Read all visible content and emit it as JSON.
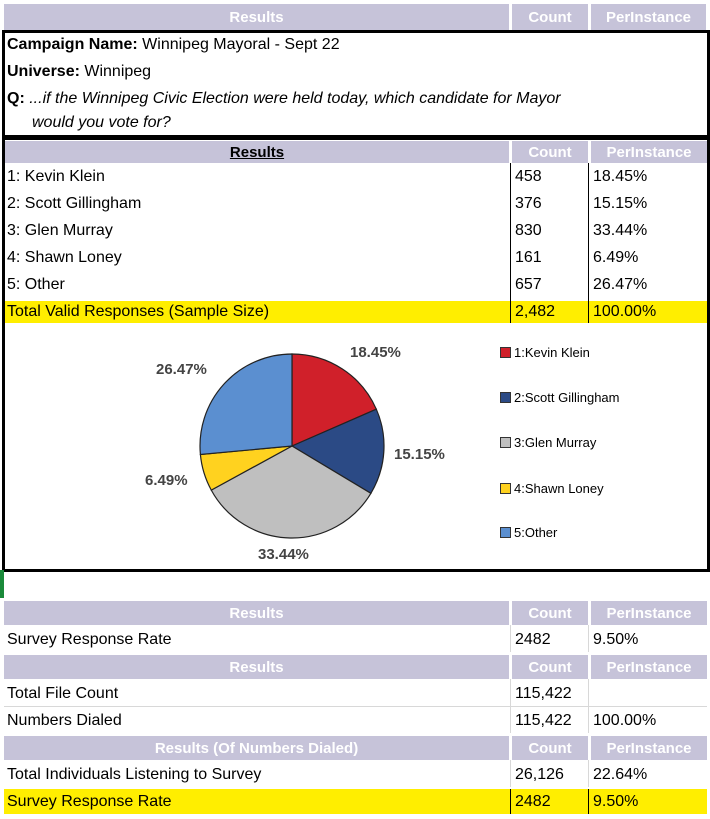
{
  "header1": {
    "results": "Results",
    "count": "Count",
    "per": "PerInstance"
  },
  "campaign": {
    "name_label": "Campaign Name:",
    "name_value": "Winnipeg Mayoral - Sept 22",
    "universe_label": "Universe:",
    "universe_value": "Winnipeg",
    "q_label": "Q:",
    "q_line1": "...if the Winnipeg Civic Election were held today, which candidate for Mayor",
    "q_line2": "would you vote for?"
  },
  "header2": {
    "results": "Results",
    "count": "Count",
    "per": "PerInstance"
  },
  "rows": [
    {
      "label": "1: Kevin Klein",
      "count": "458",
      "per": "18.45%"
    },
    {
      "label": "2: Scott Gillingham",
      "count": "376",
      "per": "15.15%"
    },
    {
      "label": "3: Glen Murray",
      "count": "830",
      "per": "33.44%"
    },
    {
      "label": "4: Shawn Loney",
      "count": "161",
      "per": "6.49%"
    },
    {
      "label": "5: Other",
      "count": "657",
      "per": "26.47%"
    }
  ],
  "total": {
    "label": "Total Valid Responses (Sample Size)",
    "count": "2,482",
    "per": "100.00%"
  },
  "chart_data": {
    "type": "pie",
    "title": "",
    "categories": [
      "1:Kevin Klein",
      "2:Scott Gillingham",
      "3:Glen Murray",
      "4:Shawn Loney",
      "5:Other"
    ],
    "values": [
      18.45,
      15.15,
      33.44,
      6.49,
      26.47
    ],
    "labels": [
      "18.45%",
      "15.15%",
      "33.44%",
      "6.49%",
      "26.47%"
    ],
    "colors": [
      "#d0202a",
      "#2b4a85",
      "#bfbfbf",
      "#ffd21f",
      "#5b8fd0"
    ],
    "legend_position": "right"
  },
  "section_rate": {
    "header": {
      "results": "Results",
      "count": "Count",
      "per": "PerInstance"
    },
    "label": "Survey Response Rate",
    "count": "2482",
    "per": "9.50%"
  },
  "section_file": {
    "header": {
      "results": "Results",
      "count": "Count",
      "per": "PerInstance"
    },
    "rows": [
      {
        "label": "Total File Count",
        "count": "115,422",
        "per": ""
      },
      {
        "label": "Numbers Dialed",
        "count": "115,422",
        "per": "100.00%"
      }
    ]
  },
  "section_dialed": {
    "header": {
      "results": "Results (Of Numbers Dialed)",
      "count": "Count",
      "per": "PerInstance"
    },
    "rows": [
      {
        "label": "Total Individuals Listening to Survey",
        "count": "26,126",
        "per": "22.64%"
      },
      {
        "label": "Survey Response Rate",
        "count": "2482",
        "per": "9.50%"
      }
    ]
  }
}
